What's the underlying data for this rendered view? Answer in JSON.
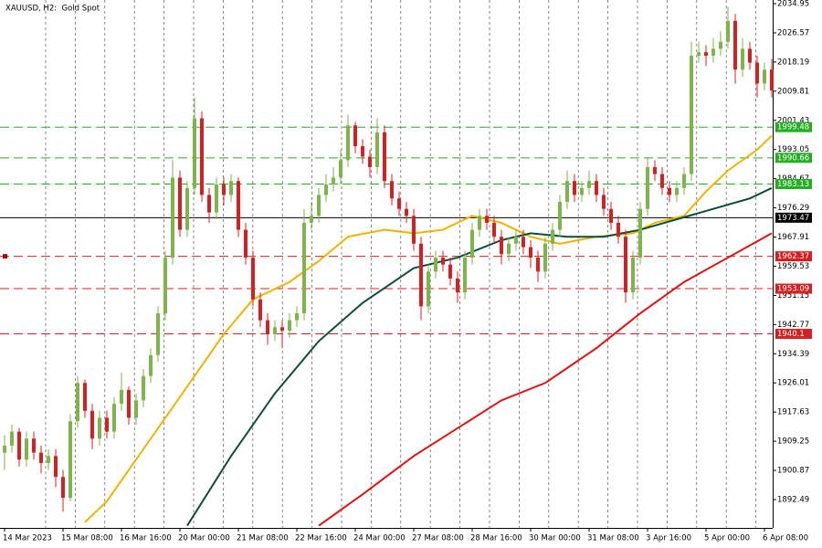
{
  "chart_data": {
    "type": "candlestick",
    "title": "XAUUSD, H2:  Gold Spot",
    "up_color": "#7ab648",
    "down_color": "#d42020",
    "ylim": [
      1884.36,
      2036.0
    ],
    "yticks": [
      2034.95,
      2026.57,
      2018.19,
      2009.81,
      2001.43,
      1993.05,
      1984.67,
      1976.29,
      1967.91,
      1959.53,
      1951.15,
      1942.77,
      1934.39,
      1926.01,
      1917.63,
      1909.25,
      1900.87,
      1892.49
    ],
    "categories": [
      "14 Mar 2023",
      null,
      null,
      null,
      null,
      null,
      null,
      null,
      "15 Mar 08:00",
      null,
      null,
      null,
      null,
      null,
      null,
      null,
      "16 Mar 16:00",
      null,
      null,
      null,
      null,
      null,
      null,
      null,
      "20 Mar 00:00",
      null,
      null,
      null,
      null,
      null,
      null,
      null,
      "21 Mar 08:00",
      null,
      null,
      null,
      null,
      null,
      null,
      null,
      "22 Mar 16:00",
      null,
      null,
      null,
      null,
      null,
      null,
      null,
      "24 Mar 00:00",
      null,
      null,
      null,
      null,
      null,
      null,
      null,
      "27 Mar 08:00",
      null,
      null,
      null,
      null,
      null,
      null,
      null,
      "28 Mar 16:00",
      null,
      null,
      null,
      null,
      null,
      null,
      null,
      "30 Mar 00:00",
      null,
      null,
      null,
      null,
      null,
      null,
      null,
      "31 Mar 08:00",
      null,
      null,
      null,
      null,
      null,
      null,
      null,
      "3 Apr 16:00",
      null,
      null,
      null,
      null,
      null,
      null,
      null,
      "5 Apr 00:00",
      null,
      null,
      null,
      null,
      null,
      null,
      null,
      "6 Apr 08:00",
      null
    ],
    "candles": [
      [
        1906,
        1911,
        1901,
        1908
      ],
      [
        1908,
        1914,
        1906,
        1912
      ],
      [
        1912,
        1913,
        1902,
        1904
      ],
      [
        1904,
        1912,
        1902,
        1910
      ],
      [
        1910,
        1912,
        1904,
        1906
      ],
      [
        1906,
        1908,
        1900,
        1903
      ],
      [
        1903,
        1907,
        1901,
        1905
      ],
      [
        1905,
        1907,
        1896,
        1899
      ],
      [
        1899,
        1901,
        1889,
        1893
      ],
      [
        1893,
        1917,
        1892,
        1915
      ],
      [
        1915,
        1928,
        1913,
        1926
      ],
      [
        1926,
        1927,
        1916,
        1918
      ],
      [
        1918,
        1920,
        1907,
        1910
      ],
      [
        1910,
        1918,
        1908,
        1916
      ],
      [
        1916,
        1918,
        1910,
        1912
      ],
      [
        1912,
        1922,
        1910,
        1920
      ],
      [
        1920,
        1929,
        1918,
        1924
      ],
      [
        1924,
        1925,
        1914,
        1916
      ],
      [
        1916,
        1923,
        1914,
        1921
      ],
      [
        1921,
        1930,
        1919,
        1928
      ],
      [
        1928,
        1936,
        1926,
        1934
      ],
      [
        1934,
        1948,
        1932,
        1946
      ],
      [
        1946,
        1964,
        1944,
        1962
      ],
      [
        1962,
        1990,
        1960,
        1985
      ],
      [
        1985,
        1987,
        1968,
        1970
      ],
      [
        1970,
        1984,
        1968,
        1982
      ],
      [
        1982,
        2008,
        1980,
        2002
      ],
      [
        2002,
        2004,
        1978,
        1980
      ],
      [
        1980,
        1982,
        1972,
        1975
      ],
      [
        1975,
        1985,
        1973,
        1983
      ],
      [
        1983,
        1985,
        1977,
        1980
      ],
      [
        1980,
        1986,
        1978,
        1984
      ],
      [
        1984,
        1985,
        1968,
        1970
      ],
      [
        1970,
        1972,
        1960,
        1962
      ],
      [
        1962,
        1964,
        1948,
        1950
      ],
      [
        1950,
        1952,
        1942,
        1944
      ],
      [
        1944,
        1946,
        1937,
        1940
      ],
      [
        1940,
        1944,
        1938,
        1942
      ],
      [
        1942,
        1944,
        1936,
        1941
      ],
      [
        1941,
        1946,
        1939,
        1944
      ],
      [
        1944,
        1948,
        1942,
        1946
      ],
      [
        1946,
        1976,
        1944,
        1972
      ],
      [
        1972,
        1978,
        1970,
        1974
      ],
      [
        1974,
        1982,
        1972,
        1980
      ],
      [
        1980,
        1986,
        1978,
        1983
      ],
      [
        1983,
        1988,
        1981,
        1985
      ],
      [
        1985,
        1993,
        1983,
        1990
      ],
      [
        1990,
        2003,
        1988,
        2000
      ],
      [
        2000,
        2001,
        1992,
        1994
      ],
      [
        1994,
        1996,
        1989,
        1991
      ],
      [
        1991,
        1993,
        1985,
        1988
      ],
      [
        1988,
        2002,
        1986,
        1998
      ],
      [
        1998,
        2000,
        1982,
        1984
      ],
      [
        1984,
        1986,
        1977,
        1979
      ],
      [
        1979,
        1981,
        1974,
        1976
      ],
      [
        1976,
        1978,
        1972,
        1974
      ],
      [
        1974,
        1976,
        1964,
        1966
      ],
      [
        1966,
        1968,
        1944,
        1948
      ],
      [
        1948,
        1960,
        1946,
        1958
      ],
      [
        1958,
        1964,
        1956,
        1962
      ],
      [
        1962,
        1964,
        1958,
        1960
      ],
      [
        1960,
        1962,
        1954,
        1956
      ],
      [
        1956,
        1958,
        1949,
        1952
      ],
      [
        1952,
        1964,
        1950,
        1962
      ],
      [
        1962,
        1972,
        1960,
        1970
      ],
      [
        1970,
        1976,
        1968,
        1974
      ],
      [
        1974,
        1976,
        1970,
        1972
      ],
      [
        1972,
        1974,
        1966,
        1968
      ],
      [
        1968,
        1970,
        1960,
        1963
      ],
      [
        1963,
        1968,
        1961,
        1966
      ],
      [
        1966,
        1970,
        1964,
        1968
      ],
      [
        1968,
        1970,
        1963,
        1965
      ],
      [
        1965,
        1967,
        1959,
        1962
      ],
      [
        1962,
        1964,
        1955,
        1958
      ],
      [
        1958,
        1968,
        1956,
        1966
      ],
      [
        1966,
        1972,
        1964,
        1970
      ],
      [
        1970,
        1980,
        1968,
        1978
      ],
      [
        1978,
        1987,
        1976,
        1984
      ],
      [
        1984,
        1986,
        1978,
        1980
      ],
      [
        1980,
        1984,
        1978,
        1982
      ],
      [
        1982,
        1987,
        1980,
        1984
      ],
      [
        1984,
        1986,
        1978,
        1980
      ],
      [
        1980,
        1982,
        1974,
        1976
      ],
      [
        1976,
        1978,
        1970,
        1972
      ],
      [
        1972,
        1974,
        1966,
        1968
      ],
      [
        1968,
        1970,
        1949,
        1952
      ],
      [
        1952,
        1964,
        1950,
        1962
      ],
      [
        1962,
        1978,
        1960,
        1976
      ],
      [
        1976,
        1991,
        1974,
        1988
      ],
      [
        1988,
        1990,
        1984,
        1986
      ],
      [
        1986,
        1988,
        1980,
        1982
      ],
      [
        1982,
        1984,
        1978,
        1980
      ],
      [
        1980,
        1984,
        1978,
        1982
      ],
      [
        1982,
        1988,
        1980,
        1986
      ],
      [
        1986,
        2024,
        1984,
        2020
      ],
      [
        2020,
        2024,
        2018,
        2021
      ],
      [
        2021,
        2023,
        2017,
        2020
      ],
      [
        2020,
        2025,
        2018,
        2022
      ],
      [
        2022,
        2027,
        2020,
        2024
      ],
      [
        2024,
        2034,
        2022,
        2030
      ],
      [
        2030,
        2032,
        2012,
        2016
      ],
      [
        2016,
        2025,
        2014,
        2022
      ],
      [
        2022,
        2024,
        2016,
        2018
      ],
      [
        2018,
        2020,
        2008,
        2012
      ],
      [
        2012,
        2018,
        2010,
        2016
      ],
      [
        2016,
        2019,
        2008,
        2010
      ]
    ],
    "moving_averages": [
      {
        "color": "#f0b400",
        "x": [
          11,
          14,
          18,
          24,
          30,
          34,
          39,
          43,
          47,
          52,
          56,
          60,
          64,
          68,
          72,
          76,
          81,
          86,
          89,
          93,
          96,
          99,
          103,
          105
        ],
        "values": [
          1886,
          1892,
          1904,
          1922,
          1940,
          1950,
          1955,
          1961,
          1968,
          1970,
          1969,
          1970,
          1974,
          1972,
          1968,
          1966,
          1968,
          1969,
          1972,
          1974,
          1981,
          1987,
          1993,
          1997
        ]
      },
      {
        "color": "#0d4d3a",
        "x": [
          25,
          31,
          37,
          43,
          49,
          56,
          62,
          68,
          72,
          77,
          82,
          87,
          92,
          97,
          102,
          105
        ],
        "values": [
          1885,
          1905,
          1923,
          1938,
          1949,
          1959,
          1962,
          1967,
          1969,
          1968,
          1968,
          1970,
          1973,
          1976,
          1979,
          1982
        ]
      },
      {
        "color": "#e01010",
        "x": [
          43,
          49,
          56,
          62,
          68,
          74,
          81,
          87,
          93,
          99,
          105
        ],
        "values": [
          1885,
          1894,
          1905,
          1913,
          1921,
          1926,
          1936,
          1946,
          1955,
          1962,
          1969
        ]
      }
    ],
    "levels": [
      {
        "value": 1999.48,
        "color": "#22b022",
        "dashed": true
      },
      {
        "value": 1990.66,
        "color": "#22b022",
        "dashed": true
      },
      {
        "value": 1983.13,
        "color": "#22b022",
        "dashed": true
      },
      {
        "value": 1973.47,
        "color": "#000000",
        "dashed": false
      },
      {
        "value": 1962.37,
        "color": "#d42020",
        "dashed": true
      },
      {
        "value": 1953.09,
        "color": "#d42020",
        "dashed": true
      },
      {
        "value": 1940.1,
        "color": "#d42020",
        "dashed": true
      }
    ]
  }
}
